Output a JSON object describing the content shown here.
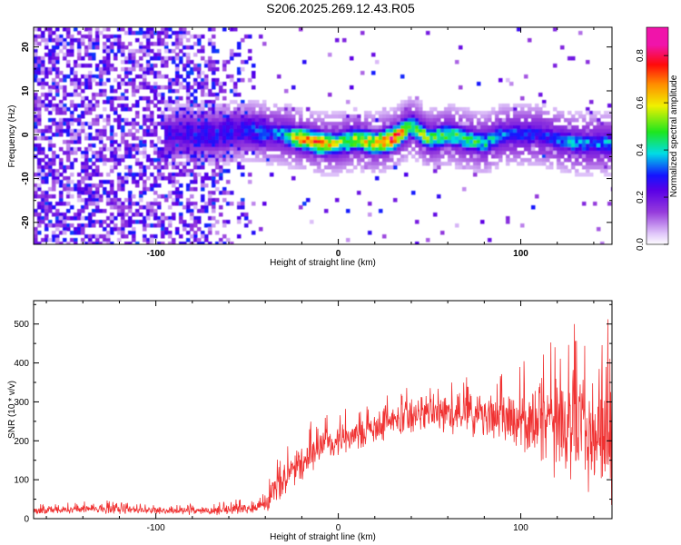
{
  "title": "S206.2025.269.12.43.R05",
  "colors": {
    "snr_line": "#f03232",
    "axis": "#000000",
    "background": "#ffffff"
  },
  "chart_data": [
    {
      "type": "heatmap",
      "title": "S206.2025.269.12.43.R05",
      "xlabel": "Height of straight line (km)",
      "ylabel": "Frequency (Hz)",
      "xlim": [
        -167,
        150
      ],
      "ylim": [
        -25,
        24.5
      ],
      "xticks": [
        -100,
        0,
        100
      ],
      "yticks": [
        -20,
        -10,
        0,
        10,
        20
      ],
      "x_tick_labels": [
        "-100",
        "0",
        "100"
      ],
      "y_tick_labels": [
        "-20",
        "-10",
        "0",
        "10",
        "20"
      ],
      "colorbar": {
        "label": "Normalized spectral amplitude",
        "range": [
          0.0,
          0.92
        ],
        "ticks": [
          0.0,
          0.2,
          0.4,
          0.6,
          0.8
        ],
        "tick_labels": [
          "0.0",
          "0.2",
          "0.4",
          "0.6",
          "0.8"
        ],
        "colormap": "rainbow (white-violet-blue-cyan-green-yellow-red-magenta)"
      },
      "ridge": {
        "description": "narrow high-amplitude band near 0 Hz from about -90 km to 150 km",
        "x": [
          -90,
          -70,
          -50,
          -30,
          -20,
          -10,
          0,
          10,
          20,
          30,
          40,
          50,
          60,
          70,
          80,
          90,
          100,
          110,
          120,
          130,
          140,
          150
        ],
        "frequency": [
          0,
          0,
          1,
          0,
          -1,
          -2,
          -2,
          -1,
          -2,
          -1,
          2,
          -1,
          0,
          -1,
          -2,
          0,
          0,
          0,
          -1,
          -2,
          -2,
          -2
        ],
        "amplitude": [
          0.25,
          0.3,
          0.3,
          0.4,
          0.7,
          0.75,
          0.55,
          0.6,
          0.65,
          0.85,
          0.55,
          0.55,
          0.5,
          0.5,
          0.45,
          0.35,
          0.35,
          0.3,
          0.35,
          0.4,
          0.35,
          0.4
        ]
      },
      "noise": {
        "description": "scattered low-amplitude violet speckle across all frequencies",
        "x_range": [
          -167,
          -50
        ],
        "amplitude_range": [
          0.05,
          0.3
        ]
      }
    },
    {
      "type": "line",
      "xlabel": "Height of straight line (km)",
      "ylabel": "SNR (10 * v/v)",
      "xlim": [
        -167,
        150
      ],
      "ylim": [
        0,
        560
      ],
      "xticks": [
        -100,
        0,
        100
      ],
      "yticks": [
        0,
        100,
        200,
        300,
        400,
        500
      ],
      "x_tick_labels": [
        "-100",
        "0",
        "100"
      ],
      "y_tick_labels": [
        "0",
        "100",
        "200",
        "300",
        "400",
        "500"
      ],
      "series": [
        {
          "name": "SNR",
          "x": [
            -167,
            -150,
            -130,
            -110,
            -90,
            -70,
            -50,
            -40,
            -30,
            -20,
            -10,
            0,
            10,
            20,
            30,
            40,
            50,
            60,
            70,
            80,
            90,
            100,
            110,
            120,
            130,
            140,
            150
          ],
          "mean": [
            20,
            22,
            25,
            22,
            20,
            20,
            25,
            40,
            95,
            140,
            175,
            200,
            215,
            235,
            255,
            265,
            270,
            270,
            268,
            265,
            262,
            255,
            250,
            245,
            230,
            220,
            215
          ],
          "spread": [
            10,
            12,
            15,
            12,
            10,
            12,
            18,
            35,
            55,
            60,
            55,
            50,
            50,
            50,
            55,
            55,
            55,
            60,
            60,
            65,
            75,
            90,
            120,
            150,
            175,
            190,
            190
          ]
        }
      ]
    }
  ]
}
